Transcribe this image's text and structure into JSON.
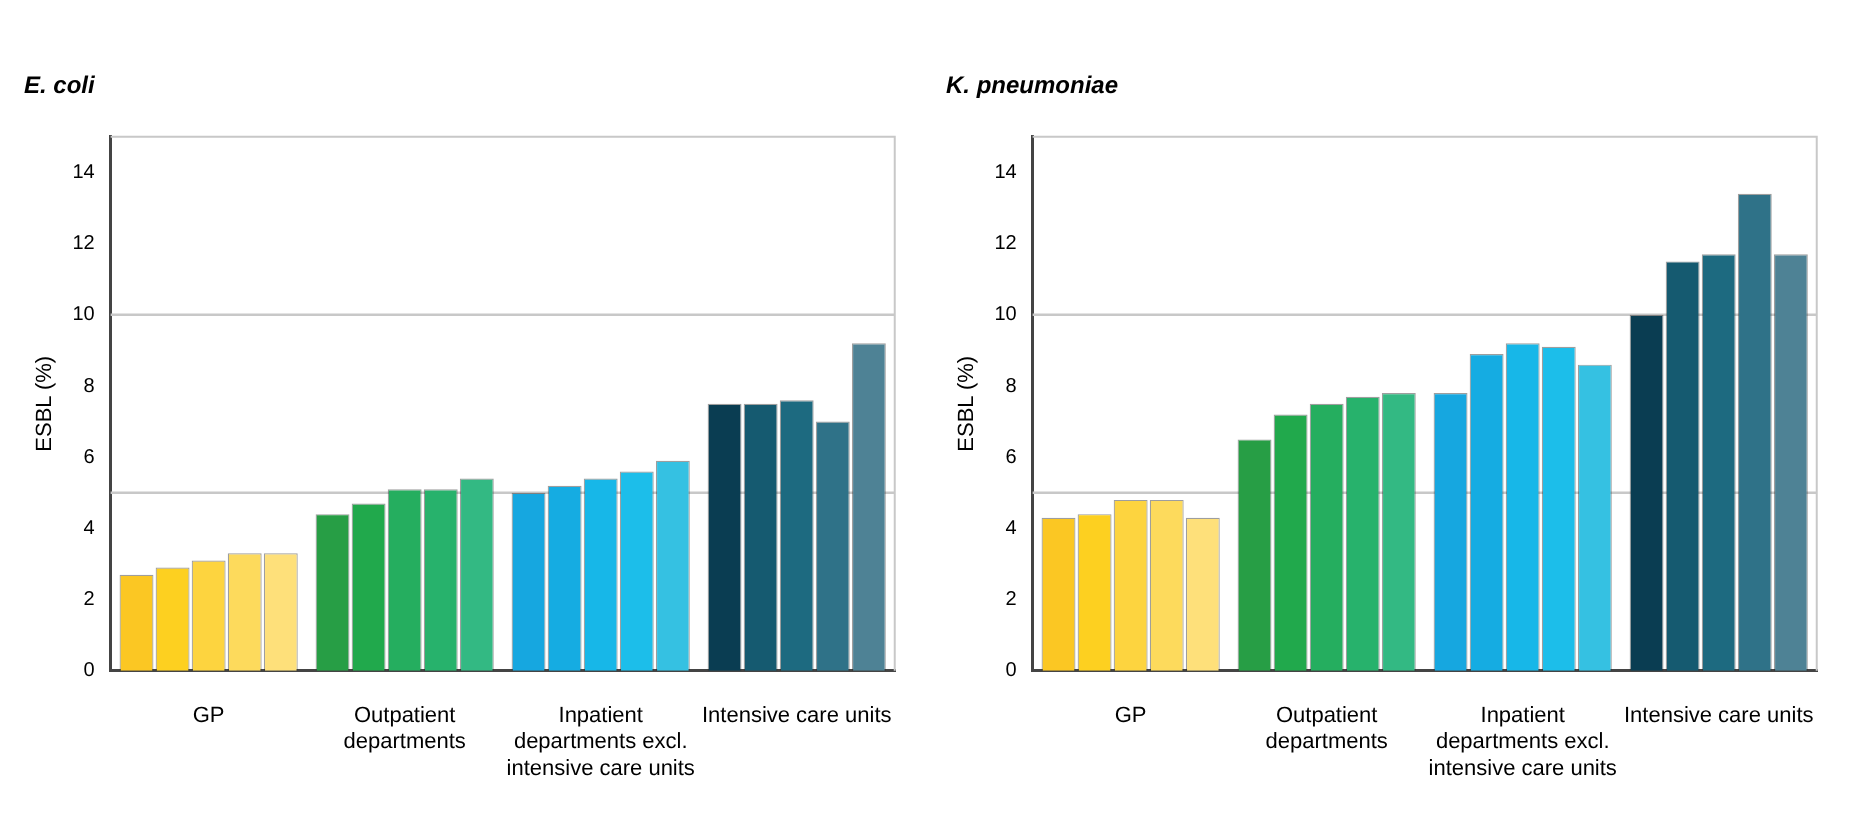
{
  "chart_data": [
    {
      "type": "bar",
      "title": "E. coli",
      "ylabel": "ESBL (%)",
      "categories": [
        "GP",
        "Outpatient departments",
        "Inpatient departments excl. intensive care units",
        "Intensive care units"
      ],
      "series": [
        {
          "colors": [
            "#fbc723",
            "#279e45",
            "#16a7e0",
            "#0a3d52"
          ],
          "values": [
            2.7,
            4.4,
            5.0,
            7.5
          ]
        },
        {
          "colors": [
            "#fdd020",
            "#21a94c",
            "#15ace2",
            "#155a70"
          ],
          "values": [
            2.9,
            4.7,
            5.2,
            7.5
          ]
        },
        {
          "colors": [
            "#fdd43f",
            "#25ae5f",
            "#17b7e8",
            "#1d6a80"
          ],
          "values": [
            3.1,
            5.1,
            5.4,
            7.6
          ]
        },
        {
          "colors": [
            "#fdda5c",
            "#27b26c",
            "#1cbeea",
            "#2f7288"
          ],
          "values": [
            3.3,
            5.1,
            5.6,
            7.0
          ]
        },
        {
          "colors": [
            "#fee07a",
            "#33b983",
            "#35c1e2",
            "#4e8295"
          ],
          "values": [
            3.3,
            5.4,
            5.9,
            9.2
          ]
        }
      ],
      "ylim": [
        0,
        15
      ],
      "yticks": [
        0,
        2,
        4,
        6,
        8,
        10,
        12,
        14
      ],
      "grid": false,
      "legend": false,
      "ref_lines": [
        {
          "axis": "y",
          "value": 5,
          "color": "#c8c8c8"
        },
        {
          "axis": "y",
          "value": 10,
          "color": "#c8c8c8"
        }
      ]
    },
    {
      "type": "bar",
      "title": "K. pneumoniae",
      "ylabel": "ESBL (%)",
      "categories": [
        "GP",
        "Outpatient departments",
        "Inpatient departments excl. intensive care units",
        "Intensive care units"
      ],
      "series": [
        {
          "colors": [
            "#fbc723",
            "#279e45",
            "#16a7e0",
            "#0a3d52"
          ],
          "values": [
            4.3,
            6.5,
            7.8,
            10.0
          ]
        },
        {
          "colors": [
            "#fdd020",
            "#21a94c",
            "#15ace2",
            "#155a70"
          ],
          "values": [
            4.4,
            7.2,
            8.9,
            11.5
          ]
        },
        {
          "colors": [
            "#fdd43f",
            "#25ae5f",
            "#17b7e8",
            "#1d6a80"
          ],
          "values": [
            4.8,
            7.5,
            9.2,
            11.7
          ]
        },
        {
          "colors": [
            "#fdda5c",
            "#27b26c",
            "#1cbeea",
            "#2f7288"
          ],
          "values": [
            4.8,
            7.7,
            9.1,
            13.4
          ]
        },
        {
          "colors": [
            "#fee07a",
            "#33b983",
            "#35c1e2",
            "#4e8295"
          ],
          "values": [
            4.3,
            7.8,
            8.6,
            11.7
          ]
        }
      ],
      "ylim": [
        0,
        15
      ],
      "yticks": [
        0,
        2,
        4,
        6,
        8,
        10,
        12,
        14
      ],
      "grid": false,
      "legend": false,
      "ref_lines": [
        {
          "axis": "y",
          "value": 5,
          "color": "#c8c8c8"
        },
        {
          "axis": "y",
          "value": 10,
          "color": "#c8c8c8"
        }
      ]
    }
  ]
}
